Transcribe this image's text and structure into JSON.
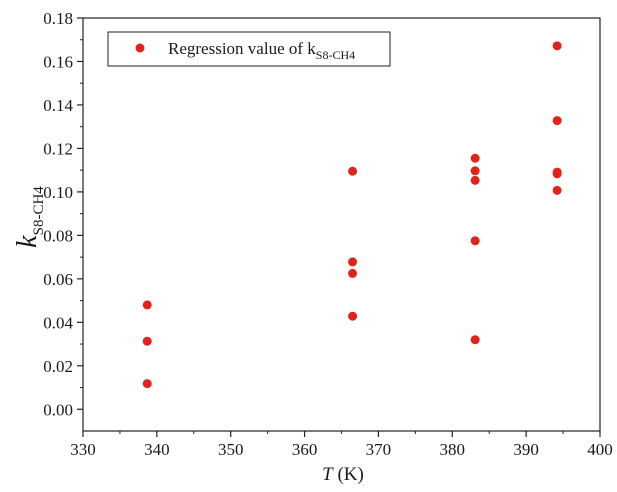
{
  "chart_data": {
    "type": "scatter",
    "title": "",
    "xlabel": {
      "symbol": "T",
      "unit": " (K)"
    },
    "ylabel": {
      "symbol": "k",
      "subscript": "S8-CH4"
    },
    "xlim": [
      330,
      400
    ],
    "ylim": [
      -0.01,
      0.18
    ],
    "x_ticks": [
      330,
      340,
      350,
      360,
      370,
      380,
      390,
      400
    ],
    "x_tick_labels": [
      "330",
      "340",
      "350",
      "360",
      "370",
      "380",
      "390",
      "400"
    ],
    "y_ticks": [
      0.0,
      0.02,
      0.04,
      0.06,
      0.08,
      0.1,
      0.12,
      0.14,
      0.16,
      0.18
    ],
    "y_tick_labels": [
      "0.00",
      "0.02",
      "0.04",
      "0.06",
      "0.08",
      "0.10",
      "0.12",
      "0.14",
      "0.16",
      "0.18"
    ],
    "grid": false,
    "legend_position": "top-left",
    "series": [
      {
        "name": "Regression value of k",
        "name_subscript": "S8-CH4",
        "color": "#e2231a",
        "marker": "circle",
        "points": [
          {
            "x": 338.7,
            "y": 0.048
          },
          {
            "x": 338.7,
            "y": 0.0313
          },
          {
            "x": 338.7,
            "y": 0.0118
          },
          {
            "x": 366.5,
            "y": 0.1095
          },
          {
            "x": 366.5,
            "y": 0.0678
          },
          {
            "x": 366.5,
            "y": 0.0625
          },
          {
            "x": 366.5,
            "y": 0.0428
          },
          {
            "x": 383.1,
            "y": 0.1155
          },
          {
            "x": 383.1,
            "y": 0.1097
          },
          {
            "x": 383.1,
            "y": 0.1053
          },
          {
            "x": 383.1,
            "y": 0.0775
          },
          {
            "x": 383.1,
            "y": 0.032
          },
          {
            "x": 394.2,
            "y": 0.1672
          },
          {
            "x": 394.2,
            "y": 0.1328
          },
          {
            "x": 394.2,
            "y": 0.1091
          },
          {
            "x": 394.2,
            "y": 0.1083
          },
          {
            "x": 394.2,
            "y": 0.1007
          }
        ]
      }
    ]
  }
}
